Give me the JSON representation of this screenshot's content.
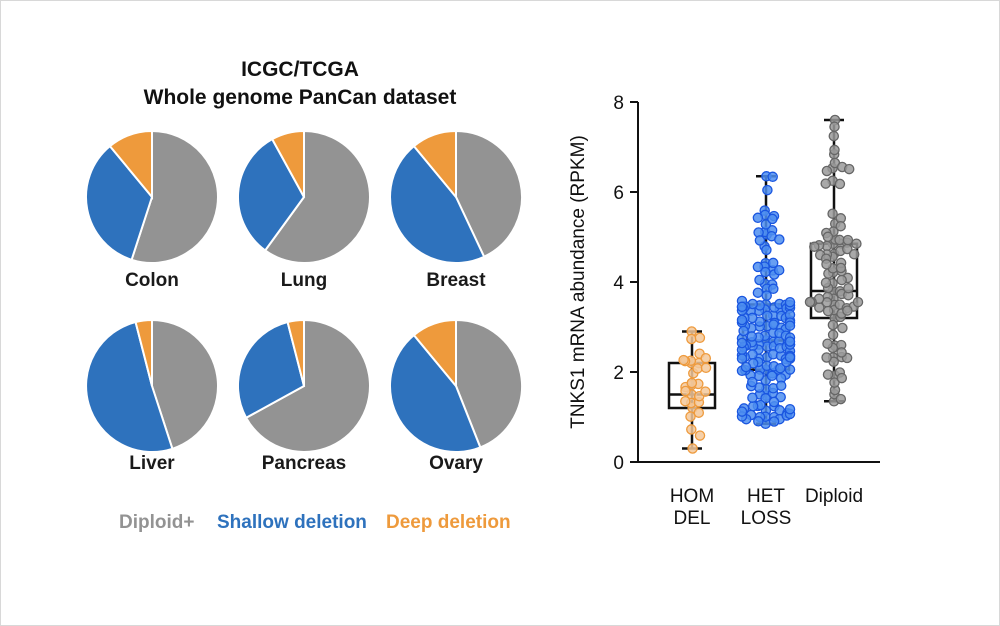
{
  "title": {
    "line1": "ICGC/TCGA",
    "line2": "Whole genome PanCan dataset"
  },
  "colors": {
    "diploid": "#939393",
    "shallow": "#2e72bd",
    "deep": "#ee9a3c"
  },
  "legend": {
    "diploid": "Diploid+",
    "shallow": "Shallow deletion",
    "deep": "Deep deletion"
  },
  "chart_data": [
    {
      "type": "pie",
      "title": "ICGC/TCGA Whole genome PanCan dataset",
      "slice_order": [
        "Diploid+",
        "Shallow deletion",
        "Deep deletion"
      ],
      "pies": [
        {
          "name": "Colon",
          "values": [
            55,
            34,
            11
          ]
        },
        {
          "name": "Lung",
          "values": [
            60,
            32,
            8
          ]
        },
        {
          "name": "Breast",
          "values": [
            43,
            46,
            11
          ]
        },
        {
          "name": "Liver",
          "values": [
            45,
            51,
            4
          ]
        },
        {
          "name": "Pancreas",
          "values": [
            67,
            29,
            4
          ]
        },
        {
          "name": "Ovary",
          "values": [
            44,
            45,
            11
          ]
        }
      ]
    },
    {
      "type": "box",
      "ylabel": "TNKS1 mRNA abundance (RPKM)",
      "ylim": [
        0,
        8
      ],
      "yticks": [
        0,
        2,
        4,
        6,
        8
      ],
      "groups": [
        {
          "label_lines": [
            "HOM",
            "DEL"
          ],
          "color": "#ee9a3c",
          "fill": "#f3c89a",
          "min": 0.3,
          "q1": 1.2,
          "median": 1.5,
          "q3": 2.2,
          "max": 2.9,
          "n": 30
        },
        {
          "label_lines": [
            "HET",
            "LOSS"
          ],
          "color": "#1a56e0",
          "fill": "#4d8ef0",
          "min": 0.85,
          "q1": 2.05,
          "median": 2.7,
          "q3": 3.5,
          "max": 6.35,
          "n": 170
        },
        {
          "label_lines": [
            "Diploid"
          ],
          "color": "#666666",
          "fill": "#9a9a9a",
          "min": 1.35,
          "q1": 3.2,
          "median": 3.8,
          "q3": 4.85,
          "max": 7.6,
          "n": 95
        }
      ]
    }
  ]
}
